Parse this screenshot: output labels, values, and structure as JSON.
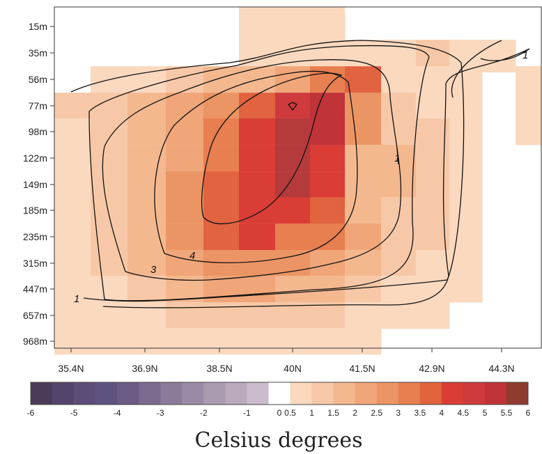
{
  "chart_data": {
    "type": "heatmap",
    "title": "",
    "xlabel": "",
    "ylabel": "",
    "x_ticks": [
      "35.4N",
      "36.9N",
      "38.5N",
      "40N",
      "41.5N",
      "42.9N",
      "44.3N"
    ],
    "y_ticks": [
      "15m",
      "35m",
      "56m",
      "77m",
      "98m",
      "122m",
      "149m",
      "185m",
      "235m",
      "315m",
      "447m",
      "657m",
      "968m"
    ],
    "x_range": [
      34.4,
      45.4
    ],
    "grid": false,
    "colorbar": {
      "title": "Celsius degrees",
      "boundaries": [
        -6,
        -5.5,
        -5,
        -4.5,
        -4,
        -3.5,
        -3,
        -2.5,
        -2,
        -1.5,
        -1,
        -0.5,
        0.5,
        1,
        1.5,
        2,
        2.5,
        3,
        3.5,
        4,
        4.5,
        5,
        5.5,
        6
      ],
      "labels": [
        "-6",
        "-5",
        "-4",
        "-3",
        "-2",
        "-1",
        "0",
        "0.5",
        "1",
        "1.5",
        "2",
        "2.5",
        "3",
        "3.5",
        "4",
        "4.5",
        "5",
        "5.5",
        "6"
      ],
      "colors": [
        "#4a3c58",
        "#53446a",
        "#5b4d78",
        "#5e5280",
        "#6b5b84",
        "#7a6a8e",
        "#8b7a99",
        "#9b8aa5",
        "#ab9bb0",
        "#bba9bd",
        "#cabccd",
        "#ffffff",
        "#fad9bf",
        "#f7c8a7",
        "#f4b88f",
        "#f0a679",
        "#ec9564",
        "#e77f50",
        "#e16340",
        "#d93d36",
        "#cf3a3c",
        "#c03339",
        "#8f3b2f"
      ]
    },
    "contour_levels": [
      1,
      3,
      4
    ],
    "contour_labels": [
      "1",
      "1",
      "3",
      "4",
      "1"
    ]
  }
}
